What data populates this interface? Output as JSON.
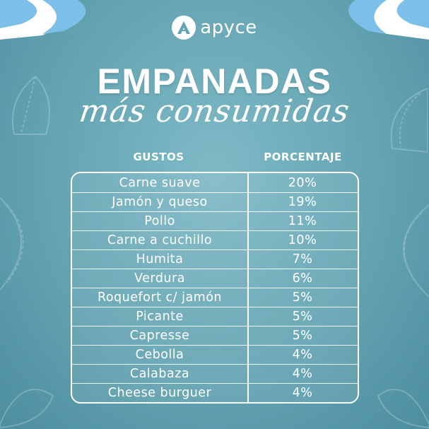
{
  "brand": {
    "name": "apyce"
  },
  "title": {
    "main": "EMPANADAS",
    "sub": "más consumidas"
  },
  "table": {
    "headers": [
      "GUSTOS",
      "PORCENTAJE"
    ],
    "rows": [
      {
        "gusto": "Carne suave",
        "porcentaje": "20%"
      },
      {
        "gusto": "Jamón y queso",
        "porcentaje": "19%"
      },
      {
        "gusto": "Pollo",
        "porcentaje": "11%"
      },
      {
        "gusto": "Carne a cuchillo",
        "porcentaje": "10%"
      },
      {
        "gusto": "Humita",
        "porcentaje": "7%"
      },
      {
        "gusto": "Verdura",
        "porcentaje": "6%"
      },
      {
        "gusto": "Roquefort c/ jamón",
        "porcentaje": "5%"
      },
      {
        "gusto": "Picante",
        "porcentaje": "5%"
      },
      {
        "gusto": "Capresse",
        "porcentaje": "5%"
      },
      {
        "gusto": "Cebolla",
        "porcentaje": "4%"
      },
      {
        "gusto": "Calabaza",
        "porcentaje": "4%"
      },
      {
        "gusto": "Cheese burguer",
        "porcentaje": "4%"
      }
    ]
  },
  "colors": {
    "background": "#63a3b2",
    "flag_blue": "#74b9e6",
    "text": "#ffffff"
  },
  "icons": [
    "apyce-logo-icon",
    "flag-left-icon",
    "flag-right-icon",
    "empanada-decoration-icon"
  ]
}
